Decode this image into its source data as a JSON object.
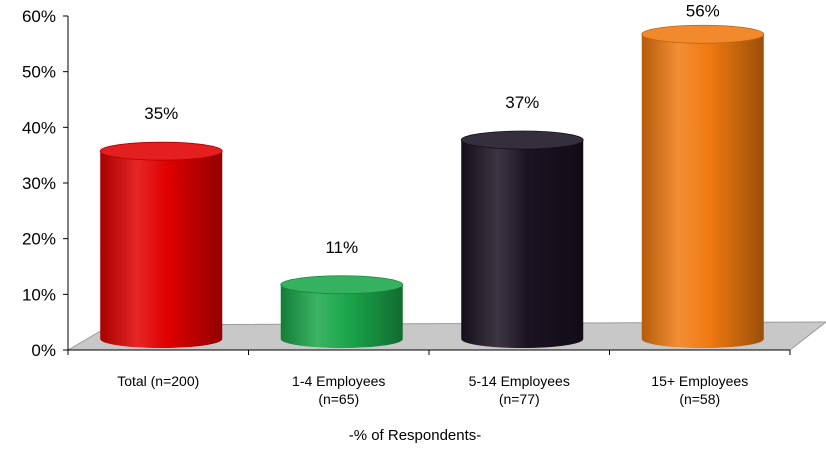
{
  "chart_data": {
    "type": "bar",
    "style": "3d-cylinder",
    "categories": [
      [
        "Total (n=200)"
      ],
      [
        "1-4 Employees",
        "(n=65)"
      ],
      [
        "5-14 Employees",
        "(n=77)"
      ],
      [
        "15+ Employees",
        "(n=58)"
      ]
    ],
    "values": [
      35,
      11,
      37,
      56
    ],
    "data_labels": [
      "35%",
      "11%",
      "37%",
      "56%"
    ],
    "colors": [
      "#e00000",
      "#1aa64a",
      "#1a1222",
      "#f07a10"
    ],
    "xlabel": "-% of Respondents-",
    "ylabel": "",
    "ylim": [
      0,
      60
    ],
    "yticks": [
      "0%",
      "10%",
      "20%",
      "30%",
      "40%",
      "50%",
      "60%"
    ],
    "grid": false,
    "legend": false
  }
}
